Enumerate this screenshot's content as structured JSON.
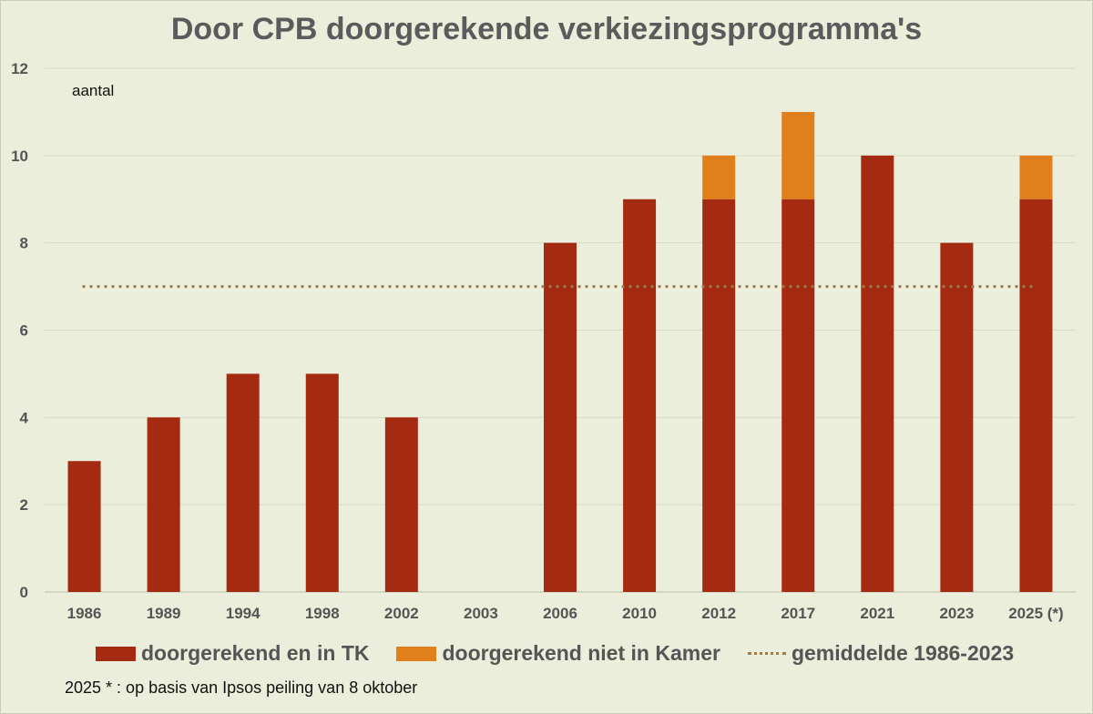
{
  "chart_data": {
    "type": "bar",
    "stacked": true,
    "title": "Door CPB doorgerekende verkiezingsprogramma's",
    "ylabel": "aantal",
    "ylim": [
      0,
      12
    ],
    "yticks": [
      0,
      2,
      4,
      6,
      8,
      10,
      12
    ],
    "grid": true,
    "categories": [
      "1986",
      "1989",
      "1994",
      "1998",
      "2002",
      "2003",
      "2006",
      "2010",
      "2012",
      "2017",
      "2021",
      "2023",
      "2025 (*)"
    ],
    "series": [
      {
        "name": "doorgerekend en in TK",
        "color": "#a52a12",
        "values": [
          3,
          4,
          5,
          5,
          4,
          0,
          8,
          9,
          9,
          9,
          10,
          8,
          9
        ]
      },
      {
        "name": "doorgerekend niet in Kamer",
        "color": "#e07f1c",
        "values": [
          0,
          0,
          0,
          0,
          0,
          0,
          0,
          0,
          1,
          2,
          0,
          0,
          1
        ]
      }
    ],
    "average_line": {
      "name": "gemiddelde 1986-2023",
      "value": 7,
      "color": "#9a7b4a",
      "style": "dotted"
    },
    "legend_position": "bottom",
    "footnote": "2025 * : op basis van Ipsos peiling van 8 oktober"
  }
}
